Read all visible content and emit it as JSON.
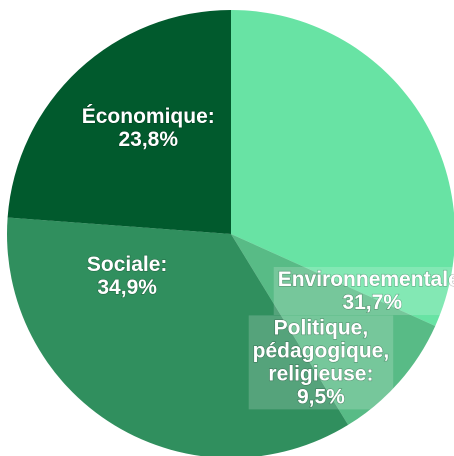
{
  "chart_data": {
    "type": "pie",
    "title": "",
    "start_angle_deg": 0,
    "direction": "clockwise",
    "slices": [
      {
        "label_lines": [
          "Environnementale:",
          "31,7%"
        ],
        "value": 31.7,
        "color": "#68e3a4"
      },
      {
        "label_lines": [
          "Politique,",
          "pédagogique,",
          "religieuse:",
          "9,5%"
        ],
        "value": 9.5,
        "color": "#58bb86"
      },
      {
        "label_lines": [
          "Sociale:",
          "34,9%"
        ],
        "value": 34.9,
        "color": "#308f5e"
      },
      {
        "label_lines": [
          "Économique:",
          "23,8%"
        ],
        "value": 23.8,
        "color": "#015a2d"
      }
    ]
  }
}
